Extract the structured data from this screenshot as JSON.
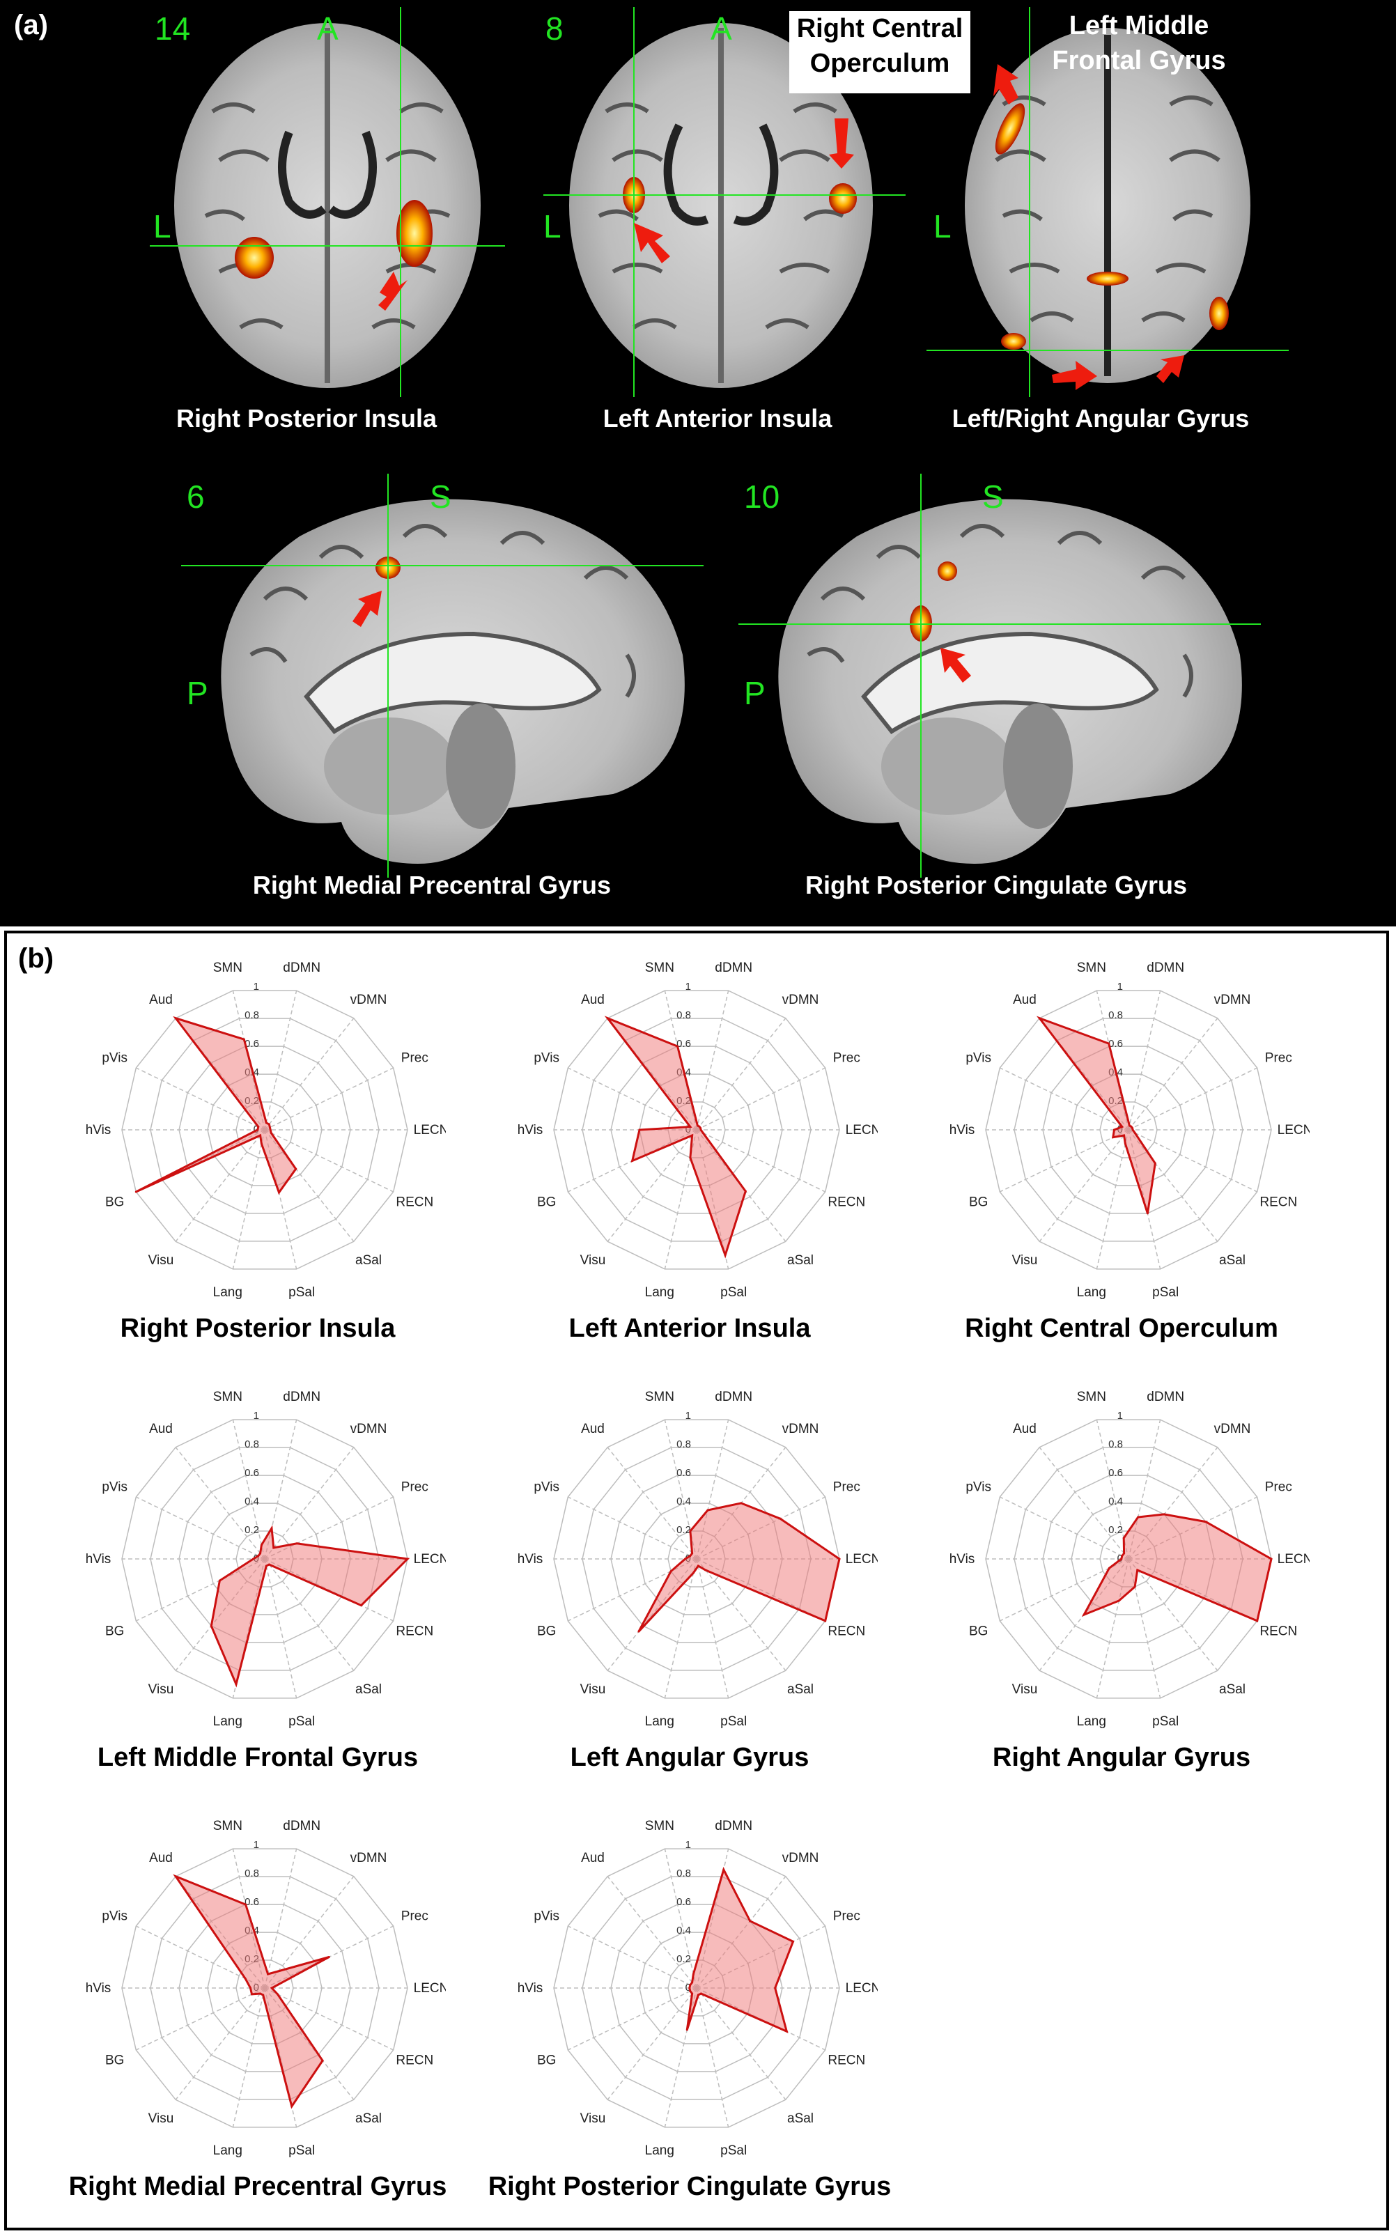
{
  "panel_a": {
    "letter": "(a)",
    "images": [
      {
        "slice": "14",
        "orient_top": "A",
        "orient_side": "L",
        "label": "Right Posterior Insula"
      },
      {
        "slice": "8",
        "orient_top": "A",
        "orient_side": "L",
        "label": "Left Anterior Insula",
        "callout": "Right Central Operculum"
      },
      {
        "slice": "",
        "orient_top": "",
        "orient_side": "L",
        "label": "Left/Right Angular Gyrus",
        "callout": "Left Middle Frontal Gyrus"
      },
      {
        "slice": "6",
        "orient_top": "S",
        "orient_side": "P",
        "label": "Right Medial Precentral Gyrus"
      },
      {
        "slice": "10",
        "orient_top": "S",
        "orient_side": "P",
        "label": "Right Posterior Cingulate Gyrus"
      }
    ],
    "callout_1a": "Right Central",
    "callout_1b": "Operculum",
    "callout_2a": "Left Middle",
    "callout_2b": "Frontal Gyrus"
  },
  "panel_b": {
    "letter": "(b)"
  },
  "chart_data": [
    {
      "type": "radar",
      "title": "Right Posterior Insula",
      "categories": [
        "SMN",
        "dDMN",
        "vDMN",
        "Prec",
        "LECN",
        "RECN",
        "aSal",
        "pSal",
        "Lang",
        "Visu",
        "BG",
        "hVis",
        "pVis",
        "Aud"
      ],
      "values": [
        0.65,
        0.05,
        0.05,
        0.04,
        0.04,
        0.05,
        0.35,
        0.45,
        0.1,
        0.05,
        1.0,
        0.05,
        0.05,
        1.0
      ],
      "rticks": [
        "0",
        "0.2",
        "0.4",
        "0.6",
        "0.8",
        "1"
      ],
      "rlim": [
        0,
        1
      ]
    },
    {
      "type": "radar",
      "title": "Left Anterior Insula",
      "categories": [
        "SMN",
        "dDMN",
        "vDMN",
        "Prec",
        "LECN",
        "RECN",
        "aSal",
        "pSal",
        "Lang",
        "Visu",
        "BG",
        "hVis",
        "pVis",
        "Aud"
      ],
      "values": [
        0.6,
        0.03,
        0.03,
        0.03,
        0.03,
        0.05,
        0.55,
        0.9,
        0.2,
        0.05,
        0.5,
        0.4,
        0.05,
        1.0
      ],
      "rticks": [
        "0",
        "0.2",
        "0.4",
        "0.6",
        "0.8",
        "1"
      ],
      "rlim": [
        0,
        1
      ]
    },
    {
      "type": "radar",
      "title": "Right Central Operculum",
      "categories": [
        "SMN",
        "dDMN",
        "vDMN",
        "Prec",
        "LECN",
        "RECN",
        "aSal",
        "pSal",
        "Lang",
        "Visu",
        "BG",
        "hVis",
        "pVis",
        "Aud"
      ],
      "values": [
        0.62,
        0.03,
        0.03,
        0.03,
        0.03,
        0.05,
        0.3,
        0.6,
        0.1,
        0.05,
        0.12,
        0.1,
        0.05,
        1.0
      ],
      "rticks": [
        "0",
        "0.2",
        "0.4",
        "0.6",
        "0.8",
        "1"
      ],
      "rlim": [
        0,
        1
      ]
    },
    {
      "type": "radar",
      "title": "Left Middle Frontal Gyrus",
      "categories": [
        "SMN",
        "dDMN",
        "vDMN",
        "Prec",
        "LECN",
        "RECN",
        "aSal",
        "pSal",
        "Lang",
        "Visu",
        "BG",
        "hVis",
        "pVis",
        "Aud"
      ],
      "values": [
        0.1,
        0.22,
        0.1,
        0.25,
        1.0,
        0.75,
        0.05,
        0.05,
        0.9,
        0.6,
        0.35,
        0.08,
        0.05,
        0.05
      ],
      "rticks": [
        "0",
        "0.2",
        "0.4",
        "0.6",
        "0.8",
        "1"
      ],
      "rlim": [
        0,
        1
      ]
    },
    {
      "type": "radar",
      "title": "Left Angular Gyrus",
      "categories": [
        "SMN",
        "dDMN",
        "vDMN",
        "Prec",
        "LECN",
        "RECN",
        "aSal",
        "pSal",
        "Lang",
        "Visu",
        "BG",
        "hVis",
        "pVis",
        "Aud"
      ],
      "values": [
        0.2,
        0.35,
        0.5,
        0.65,
        1.0,
        1.0,
        0.1,
        0.05,
        0.1,
        0.65,
        0.2,
        0.08,
        0.05,
        0.05
      ],
      "rticks": [
        "0",
        "0.2",
        "0.4",
        "0.6",
        "0.8",
        "1"
      ],
      "rlim": [
        0,
        1
      ]
    },
    {
      "type": "radar",
      "title": "Right Angular Gyrus",
      "categories": [
        "SMN",
        "dDMN",
        "vDMN",
        "Prec",
        "LECN",
        "RECN",
        "aSal",
        "pSal",
        "Lang",
        "Visu",
        "BG",
        "hVis",
        "pVis",
        "Aud"
      ],
      "values": [
        0.15,
        0.3,
        0.4,
        0.6,
        1.0,
        1.0,
        0.1,
        0.2,
        0.3,
        0.5,
        0.15,
        0.05,
        0.05,
        0.05
      ],
      "rticks": [
        "0",
        "0.2",
        "0.4",
        "0.6",
        "0.8",
        "1"
      ],
      "rlim": [
        0,
        1
      ]
    },
    {
      "type": "radar",
      "title": "Right Medial Precentral Gyrus",
      "categories": [
        "SMN",
        "dDMN",
        "vDMN",
        "Prec",
        "LECN",
        "RECN",
        "aSal",
        "pSal",
        "Lang",
        "Visu",
        "BG",
        "hVis",
        "pVis",
        "Aud"
      ],
      "values": [
        0.6,
        0.1,
        0.15,
        0.5,
        0.05,
        0.1,
        0.65,
        0.85,
        0.05,
        0.05,
        0.1,
        0.1,
        0.15,
        1.0
      ],
      "rticks": [
        "0",
        "0.2",
        "0.4",
        "0.6",
        "0.8",
        "1"
      ],
      "rlim": [
        0,
        1
      ]
    },
    {
      "type": "radar",
      "title": "Right Posterior Cingulate Gyrus",
      "categories": [
        "SMN",
        "dDMN",
        "vDMN",
        "Prec",
        "LECN",
        "RECN",
        "aSal",
        "pSal",
        "Lang",
        "Visu",
        "BG",
        "hVis",
        "pVis",
        "Aud"
      ],
      "values": [
        0.1,
        0.85,
        0.6,
        0.75,
        0.55,
        0.7,
        0.05,
        0.05,
        0.3,
        0.05,
        0.05,
        0.05,
        0.05,
        0.05
      ],
      "rticks": [
        "0",
        "0.2",
        "0.4",
        "0.6",
        "0.8",
        "1"
      ],
      "rlim": [
        0,
        1
      ]
    }
  ]
}
